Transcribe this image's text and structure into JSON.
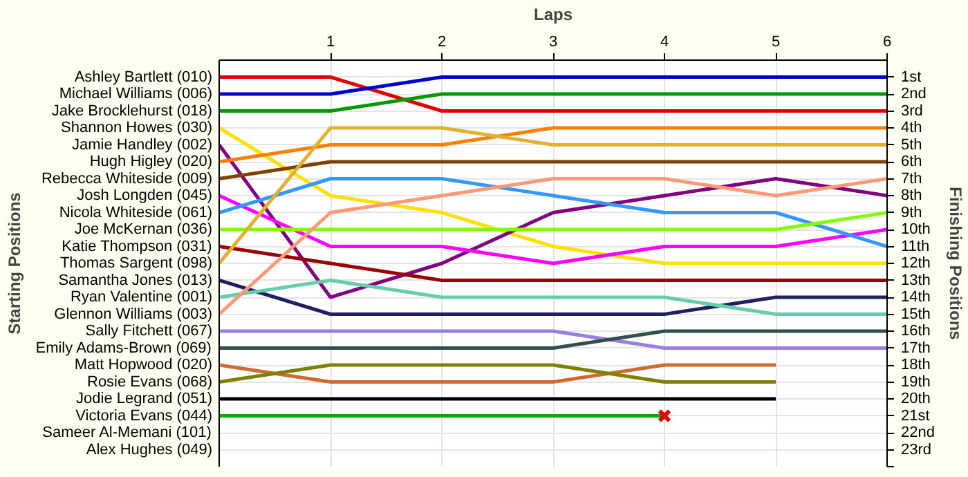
{
  "chart_data": {
    "type": "line",
    "xlabel": "Laps",
    "ylabel": "Finishing Positions",
    "legend_title": "Starting Positions",
    "legend": "left",
    "x": [
      0,
      1,
      2,
      3,
      4,
      5,
      6
    ],
    "xlim": [
      0,
      6
    ],
    "xticks": [
      1,
      2,
      3,
      4,
      5,
      6
    ],
    "ylim": [
      24,
      0
    ],
    "yticks": [
      {
        "value": 1,
        "label": "1st"
      },
      {
        "value": 2,
        "label": "2nd"
      },
      {
        "value": 3,
        "label": "3rd"
      },
      {
        "value": 4,
        "label": "4th"
      },
      {
        "value": 5,
        "label": "5th"
      },
      {
        "value": 6,
        "label": "6th"
      },
      {
        "value": 7,
        "label": "7th"
      },
      {
        "value": 8,
        "label": "8th"
      },
      {
        "value": 9,
        "label": "9th"
      },
      {
        "value": 10,
        "label": "10th"
      },
      {
        "value": 11,
        "label": "11th"
      },
      {
        "value": 12,
        "label": "12th"
      },
      {
        "value": 13,
        "label": "13th"
      },
      {
        "value": 14,
        "label": "14th"
      },
      {
        "value": 15,
        "label": "15th"
      },
      {
        "value": 16,
        "label": "16th"
      },
      {
        "value": 17,
        "label": "17th"
      },
      {
        "value": 18,
        "label": "18th"
      },
      {
        "value": 19,
        "label": "19th"
      },
      {
        "value": 20,
        "label": "20th"
      },
      {
        "value": 21,
        "label": "21st"
      },
      {
        "value": 22,
        "label": "22nd"
      },
      {
        "value": 23,
        "label": "23rd"
      },
      {
        "value": 24,
        "label": null
      }
    ],
    "grid": true,
    "line_style": "solid",
    "annotations": [
      "Sameer Al-Memani (101)",
      "Alex Hughes (049)"
    ],
    "series": [
      {
        "name": "Ashley Bartlett (010)",
        "color": "#e00000",
        "values": [
          1,
          1,
          3,
          3,
          3,
          3,
          3
        ]
      },
      {
        "name": "Michael Williams (006)",
        "color": "#0000cc",
        "values": [
          2,
          2,
          1,
          1,
          1,
          1,
          1
        ]
      },
      {
        "name": "Jake Brocklehurst (018)",
        "color": "#009900",
        "values": [
          3,
          3,
          2,
          2,
          2,
          2,
          2
        ]
      },
      {
        "name": "Shannon Howes (030)",
        "color": "#ffe000",
        "values": [
          4,
          8,
          9,
          11,
          12,
          12,
          12
        ]
      },
      {
        "name": "Jamie Handley (002)",
        "color": "#800080",
        "values": [
          5,
          14,
          12,
          9,
          8,
          7,
          8
        ]
      },
      {
        "name": "Hugh Higley (020)",
        "color": "#ff8000",
        "values": [
          6,
          5,
          5,
          4,
          4,
          4,
          4
        ]
      },
      {
        "name": "Rebecca Whiteside (009)",
        "color": "#804000",
        "values": [
          7,
          6,
          6,
          6,
          6,
          6,
          6
        ]
      },
      {
        "name": "Josh Longden (045)",
        "color": "#ff00ff",
        "values": [
          8,
          11,
          11,
          12,
          11,
          11,
          10
        ]
      },
      {
        "name": "Nicola Whiteside (061)",
        "color": "#3399ff",
        "values": [
          9,
          7,
          7,
          8,
          9,
          9,
          11
        ]
      },
      {
        "name": "Joe McKernan (036)",
        "color": "#80ff00",
        "values": [
          10,
          10,
          10,
          10,
          10,
          10,
          9
        ]
      },
      {
        "name": "Katie Thompson (031)",
        "color": "#990000",
        "values": [
          11,
          12,
          13,
          13,
          13,
          13,
          13
        ]
      },
      {
        "name": "Thomas Sargent (098)",
        "color": "#e0b030",
        "values": [
          12,
          4,
          4,
          5,
          5,
          5,
          5
        ]
      },
      {
        "name": "Samantha Jones (013)",
        "color": "#202060",
        "values": [
          13,
          15,
          15,
          15,
          15,
          14,
          14
        ]
      },
      {
        "name": "Ryan Valentine (001)",
        "color": "#66ccaa",
        "values": [
          14,
          13,
          14,
          14,
          14,
          15,
          15
        ]
      },
      {
        "name": "Glennon Williams (003)",
        "color": "#ff9977",
        "values": [
          15,
          9,
          8,
          7,
          7,
          8,
          7
        ]
      },
      {
        "name": "Sally Fitchett (067)",
        "color": "#9980e0",
        "values": [
          16,
          16,
          16,
          16,
          17,
          17,
          17
        ]
      },
      {
        "name": "Emily Adams-Brown (069)",
        "color": "#305050",
        "values": [
          17,
          17,
          17,
          17,
          16,
          16,
          16
        ]
      },
      {
        "name": "Matt Hopwood (020)",
        "color": "#d06a30",
        "values": [
          18,
          19,
          19,
          19,
          18,
          18,
          null
        ]
      },
      {
        "name": "Rosie Evans (068)",
        "color": "#808000",
        "values": [
          19,
          18,
          18,
          18,
          19,
          19,
          null
        ]
      },
      {
        "name": "Jodie Legrand (051)",
        "color": "#000000",
        "values": [
          20,
          20,
          20,
          20,
          20,
          20,
          null
        ]
      },
      {
        "name": "Victoria Evans (044)",
        "color": "#00aa00",
        "values": [
          21,
          21,
          21,
          21,
          21,
          null,
          null
        ]
      },
      {
        "type": "scatter",
        "marker": "cross",
        "color": "#e00000",
        "x": [
          4
        ],
        "values": [
          21
        ]
      }
    ]
  }
}
